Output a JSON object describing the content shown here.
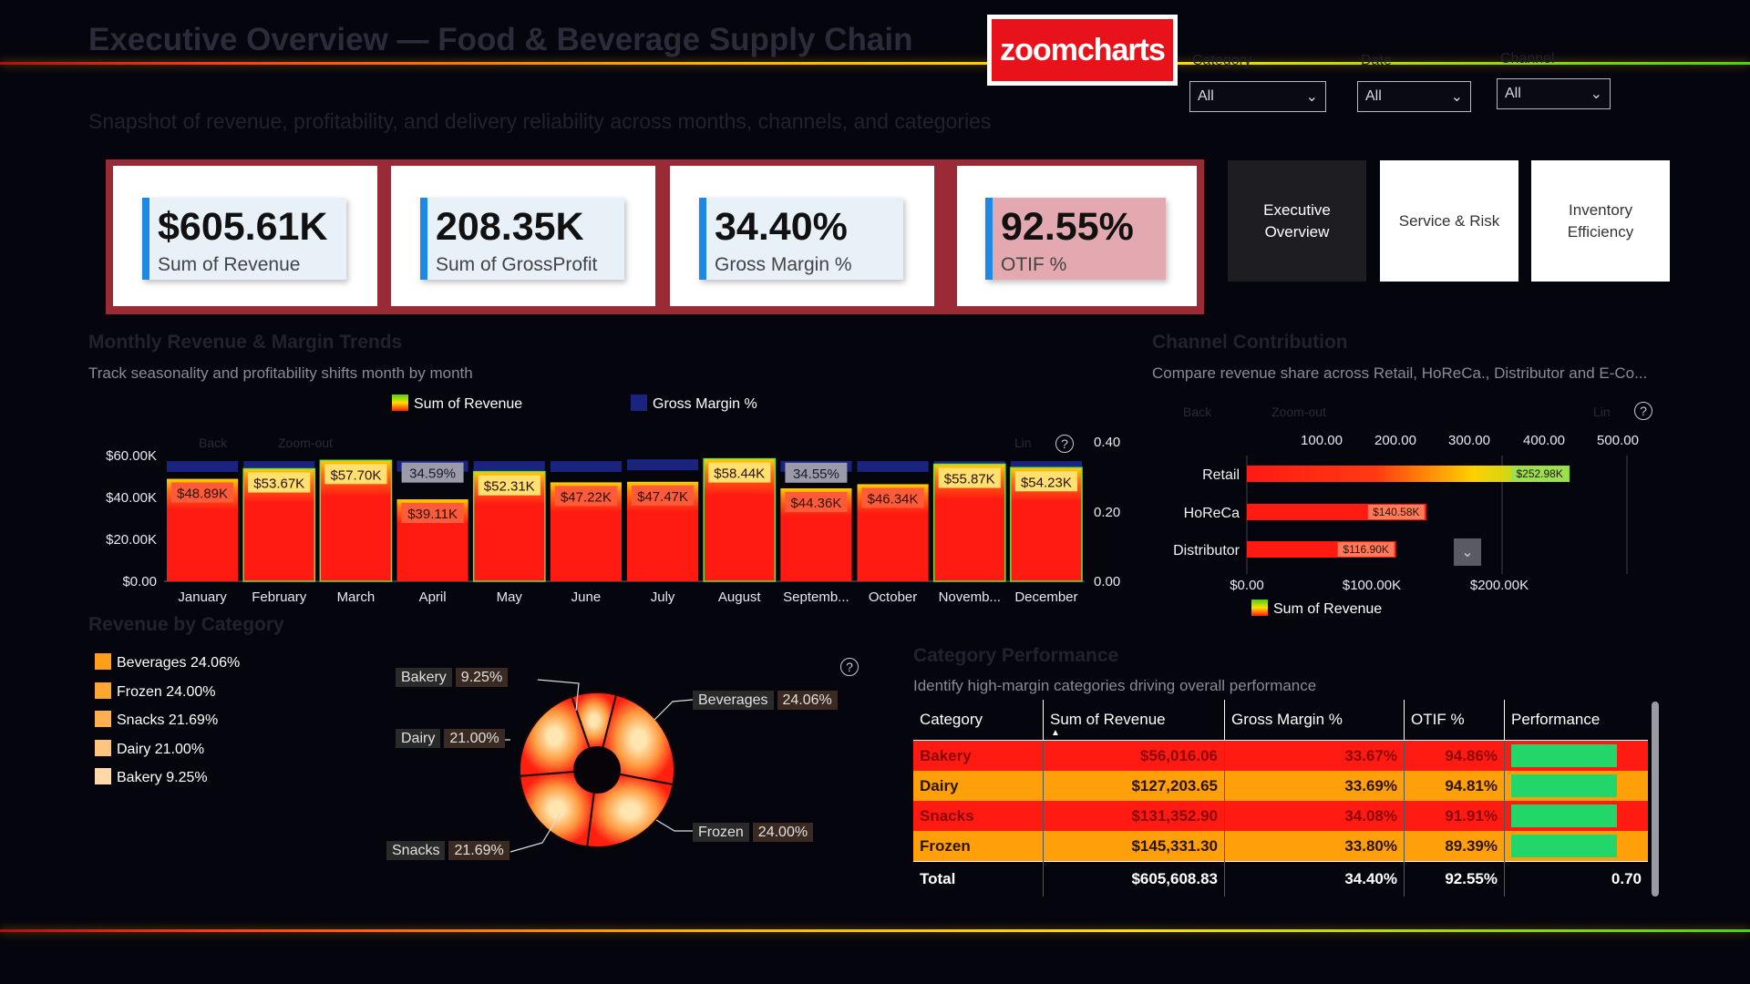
{
  "header": {
    "title": "Executive Overview — Food & Beverage Supply Chain",
    "subtitle": "Snapshot of revenue, profitability, and delivery reliability across months, channels, and categories",
    "logo": "zoomcharts"
  },
  "filters": [
    {
      "label": "Category",
      "value": "All"
    },
    {
      "label": "Date",
      "value": "All"
    },
    {
      "label": "Channel",
      "value": "All"
    }
  ],
  "kpis": [
    {
      "value": "$605.61K",
      "label": "Sum of Revenue"
    },
    {
      "value": "208.35K",
      "label": "Sum of GrossProfit"
    },
    {
      "value": "34.40%",
      "label": "Gross Margin %"
    },
    {
      "value": "92.55%",
      "label": "OTIF %"
    }
  ],
  "nav": {
    "executive": {
      "line1": "Executive",
      "line2": "Overview"
    },
    "service": {
      "line1": "Service & Risk"
    },
    "inventory": {
      "line1": "Inventory",
      "line2": "Efficiency"
    }
  },
  "monthly": {
    "title": "Monthly Revenue & Margin Trends",
    "subtitle": "Track seasonality and profitability shifts month by month",
    "toolbar": {
      "back": "Back",
      "zoom": "Zoom-out",
      "lin": "Lin",
      "help": "?"
    },
    "chart_data": {
      "type": "bar",
      "categories": [
        "January",
        "February",
        "March",
        "April",
        "May",
        "June",
        "July",
        "August",
        "Septemb...",
        "October",
        "Novemb...",
        "December"
      ],
      "series": [
        {
          "name": "Sum of Revenue",
          "values": [
            48.89,
            53.67,
            57.7,
            39.11,
            52.31,
            47.22,
            47.47,
            58.44,
            44.36,
            46.34,
            55.87,
            54.23
          ],
          "labels": [
            "$48.89K",
            "$53.67K",
            "$57.70K",
            "$39.11K",
            "$52.31K",
            "$47.22K",
            "$47.47K",
            "$58.44K",
            "$44.36K",
            "$46.34K",
            "$55.87K",
            "$54.23K"
          ]
        },
        {
          "name": "Gross Margin %",
          "values": [
            0.345,
            0.345,
            0.345,
            0.3459,
            0.345,
            0.345,
            0.35,
            0.345,
            0.3455,
            0.345,
            0.345,
            0.345
          ]
        }
      ],
      "margin_labels": {
        "3": "34.59%",
        "8": "34.55%"
      },
      "yleft_ticks": [
        "$0.00",
        "$20.00K",
        "$40.00K",
        "$60.00K"
      ],
      "yleft_max": 60,
      "yright_ticks": [
        "0.00",
        "0.20",
        "0.40"
      ],
      "yright_max": 0.4,
      "legend": "top"
    }
  },
  "channel": {
    "title": "Channel Contribution",
    "subtitle": "Compare revenue share across Retail, HoReCa., Distributor and E-Co...",
    "toolbar": {
      "back": "Back",
      "zoom": "Zoom-out",
      "lin": "Lin",
      "help": "?"
    },
    "chart_data": {
      "type": "bar",
      "orientation": "horizontal",
      "categories": [
        "Retail",
        "HoReCa",
        "Distributor"
      ],
      "series": [
        {
          "name": "Sum of Revenue",
          "values": [
            252.98,
            140.58,
            116.9
          ],
          "labels": [
            "$252.98K",
            "$140.58K",
            "$116.90K"
          ]
        }
      ],
      "x_ticks": [
        "$0.00",
        "$100.00K",
        "$200.00K"
      ],
      "top_ticks": [
        "100.00",
        "200.00",
        "300.00",
        "400.00",
        "500.00"
      ],
      "legend": "bottom"
    }
  },
  "category": {
    "title": "Revenue by Category",
    "help": "?",
    "legend": [
      {
        "label": "Beverages 24.06%",
        "color": "#ff9f1a"
      },
      {
        "label": "Frozen 24.00%",
        "color": "#ffa733"
      },
      {
        "label": "Snacks 21.69%",
        "color": "#ffb050"
      },
      {
        "label": "Dairy 21.00%",
        "color": "#ffc480"
      },
      {
        "label": "Bakery 9.25%",
        "color": "#ffd9a8"
      }
    ],
    "chart_data": {
      "type": "pie",
      "slices": [
        {
          "name": "Beverages",
          "value": 24.06,
          "label": "24.06%"
        },
        {
          "name": "Frozen",
          "value": 24.0,
          "label": "24.00%"
        },
        {
          "name": "Snacks",
          "value": 21.69,
          "label": "21.69%"
        },
        {
          "name": "Dairy",
          "value": 21.0,
          "label": "21.00%"
        },
        {
          "name": "Bakery",
          "value": 9.25,
          "label": "9.25%"
        }
      ]
    }
  },
  "performance": {
    "title": "Category Performance",
    "subtitle": "Identify high-margin categories driving overall performance",
    "columns": [
      "Category",
      "Sum of Revenue",
      "Gross Margin %",
      "OTIF %",
      "Performance"
    ],
    "rows": [
      {
        "category": "Bakery",
        "revenue": "$56,016.06",
        "margin": "33.67%",
        "otif": "94.86%",
        "perf": 0.7,
        "style": "r-red"
      },
      {
        "category": "Dairy",
        "revenue": "$127,203.65",
        "margin": "33.69%",
        "otif": "94.81%",
        "perf": 0.7,
        "style": "r-or"
      },
      {
        "category": "Snacks",
        "revenue": "$131,352.90",
        "margin": "34.08%",
        "otif": "91.91%",
        "perf": 0.7,
        "style": "r-red"
      },
      {
        "category": "Frozen",
        "revenue": "$145,331.30",
        "margin": "33.80%",
        "otif": "89.39%",
        "perf": 0.7,
        "style": "r-or"
      }
    ],
    "total": {
      "label": "Total",
      "revenue": "$605,608.83",
      "margin": "34.40%",
      "otif": "92.55%",
      "perf": "0.70"
    }
  },
  "colors": {
    "accent": "#1e88e5",
    "kpi_band": "#9a2a36",
    "revenue_red": "#ff1a12",
    "margin_blue": "#1a237e",
    "perf_green": "#22d66a"
  }
}
